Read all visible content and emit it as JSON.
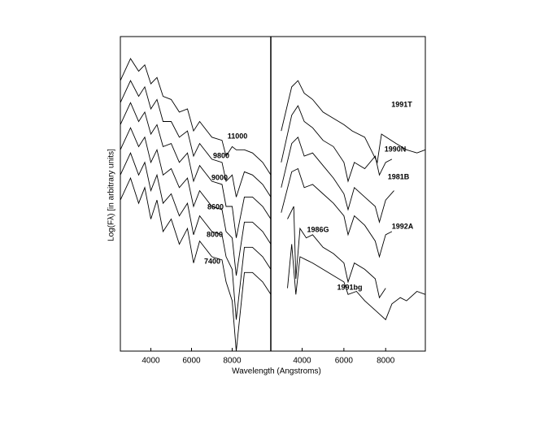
{
  "chart_data": [
    {
      "type": "line",
      "xlabel": "Wavelength (Angstroms)",
      "ylabel": "Log(Fλ) [in arbitrary units]",
      "xlim": [
        2500,
        9900
      ],
      "xticks": [
        4000,
        6000,
        8000
      ],
      "ylim": [
        0,
        10
      ],
      "series": [
        {
          "name": "11000",
          "color": "#000000",
          "x": [
            2500,
            3000,
            3400,
            3700,
            4000,
            4300,
            4600,
            5000,
            5400,
            5800,
            6100,
            6400,
            7000,
            7500,
            7700,
            8000,
            8200,
            8600,
            9000,
            9500,
            9900
          ],
          "values": [
            8.6,
            9.3,
            8.9,
            9.1,
            8.5,
            8.7,
            8.1,
            8.0,
            7.6,
            7.7,
            7.0,
            7.3,
            6.8,
            6.7,
            6.2,
            6.5,
            6.4,
            6.4,
            6.3,
            6.0,
            5.6
          ]
        },
        {
          "name": "9800",
          "color": "#000000",
          "x": [
            2500,
            3000,
            3400,
            3700,
            4000,
            4300,
            4600,
            5000,
            5400,
            5800,
            6100,
            6400,
            7000,
            7500,
            7700,
            8000,
            8200,
            8600,
            9000,
            9500,
            9900
          ],
          "values": [
            7.9,
            8.6,
            8.1,
            8.4,
            7.7,
            8.0,
            7.3,
            7.3,
            6.8,
            7.0,
            6.2,
            6.6,
            6.1,
            6.0,
            5.4,
            5.6,
            4.9,
            5.7,
            5.6,
            5.3,
            4.9
          ]
        },
        {
          "name": "9000",
          "color": "#000000",
          "x": [
            2500,
            3000,
            3400,
            3700,
            4000,
            4300,
            4600,
            5000,
            5400,
            5800,
            6100,
            6400,
            7000,
            7500,
            7700,
            8000,
            8200,
            8600,
            9000,
            9500,
            9900
          ],
          "values": [
            7.2,
            7.9,
            7.3,
            7.6,
            6.9,
            7.2,
            6.5,
            6.6,
            6.0,
            6.3,
            5.4,
            5.9,
            5.4,
            5.3,
            4.6,
            4.6,
            3.6,
            4.9,
            4.9,
            4.6,
            4.2
          ]
        },
        {
          "name": "8600",
          "color": "#000000",
          "x": [
            2500,
            3000,
            3400,
            3700,
            4000,
            4300,
            4600,
            5000,
            5400,
            5800,
            6100,
            6400,
            7000,
            7500,
            7700,
            8000,
            8200,
            8600,
            9000,
            9500,
            9900
          ],
          "values": [
            6.4,
            7.1,
            6.5,
            6.8,
            6.0,
            6.4,
            5.6,
            5.8,
            5.2,
            5.5,
            4.6,
            5.1,
            4.6,
            4.5,
            3.8,
            3.6,
            2.4,
            4.1,
            4.1,
            3.8,
            3.4
          ]
        },
        {
          "name": "8000",
          "color": "#000000",
          "x": [
            2500,
            3000,
            3400,
            3700,
            4000,
            4300,
            4600,
            5000,
            5400,
            5800,
            6100,
            6400,
            7000,
            7500,
            7700,
            8000,
            8200,
            8600,
            9000,
            9500,
            9900
          ],
          "values": [
            5.6,
            6.3,
            5.6,
            6.0,
            5.1,
            5.6,
            4.7,
            5.0,
            4.3,
            4.7,
            3.7,
            4.3,
            3.8,
            3.7,
            3.0,
            2.6,
            1.0,
            3.3,
            3.3,
            3.0,
            2.6
          ]
        },
        {
          "name": "7400",
          "color": "#000000",
          "x": [
            2500,
            3000,
            3400,
            3700,
            4000,
            4300,
            4600,
            5000,
            5400,
            5800,
            6100,
            6400,
            7000,
            7500,
            7700,
            8000,
            8200,
            8600,
            9000,
            9500,
            9900
          ],
          "values": [
            4.8,
            5.5,
            4.7,
            5.2,
            4.2,
            4.8,
            3.8,
            4.2,
            3.4,
            3.9,
            2.8,
            3.5,
            3.0,
            2.9,
            2.2,
            1.6,
            0.0,
            2.5,
            2.5,
            2.2,
            1.8
          ]
        }
      ]
    },
    {
      "type": "line",
      "xlim": [
        2500,
        9900
      ],
      "xticks": [
        4000,
        6000,
        8000
      ],
      "ylim": [
        0,
        10
      ],
      "series": [
        {
          "name": "1991T",
          "color": "#000000",
          "x": [
            3000,
            3500,
            3800,
            4100,
            4500,
            5000,
            5500,
            6000,
            6400,
            7000,
            7600,
            7800,
            8500,
            9000,
            9500,
            9900
          ],
          "values": [
            7.0,
            8.4,
            8.6,
            8.2,
            8.0,
            7.6,
            7.4,
            7.2,
            7.0,
            6.8,
            6.0,
            6.9,
            6.6,
            6.4,
            6.3,
            6.4
          ]
        },
        {
          "name": "1990N",
          "color": "#000000",
          "x": [
            3000,
            3500,
            3800,
            4100,
            4500,
            5000,
            5500,
            6000,
            6200,
            6500,
            7000,
            7500,
            7700,
            8000,
            8300
          ],
          "values": [
            6.0,
            7.5,
            7.8,
            7.3,
            7.1,
            6.7,
            6.5,
            6.0,
            5.4,
            6.0,
            5.8,
            6.2,
            5.6,
            6.0,
            6.1
          ]
        },
        {
          "name": "1981B",
          "color": "#000000",
          "x": [
            3000,
            3500,
            3800,
            4100,
            4500,
            5000,
            5500,
            6000,
            6200,
            6500,
            7000,
            7500,
            7700,
            8000,
            8400
          ],
          "values": [
            5.2,
            6.6,
            6.8,
            6.2,
            6.3,
            5.9,
            5.5,
            5.0,
            4.5,
            5.2,
            4.9,
            4.6,
            4.1,
            4.8,
            5.1
          ]
        },
        {
          "name": "1992A",
          "color": "#000000",
          "x": [
            3000,
            3500,
            3800,
            4100,
            4500,
            5000,
            5500,
            6000,
            6200,
            6500,
            7000,
            7500,
            7700,
            8000,
            8300
          ],
          "values": [
            4.4,
            5.7,
            5.8,
            5.2,
            5.3,
            5.0,
            4.7,
            4.3,
            3.7,
            4.3,
            4.0,
            3.5,
            3.0,
            3.7,
            3.8
          ]
        },
        {
          "name": "1986G",
          "color": "#000000",
          "x": [
            3300,
            3600,
            3700,
            3900,
            4200,
            4500,
            5000,
            5500,
            6000,
            6200,
            6500,
            7000,
            7500,
            7700,
            8000
          ],
          "values": [
            4.2,
            4.6,
            2.3,
            3.9,
            3.6,
            3.7,
            3.3,
            3.1,
            2.8,
            2.2,
            2.8,
            2.6,
            2.3,
            1.7,
            2.0
          ]
        },
        {
          "name": "1991bg",
          "color": "#000000",
          "x": [
            3300,
            3500,
            3700,
            3900,
            4200,
            4500,
            5000,
            5500,
            6000,
            6200,
            6600,
            7000,
            7500,
            8000,
            8300,
            8700,
            9000,
            9500,
            9900
          ],
          "values": [
            2.0,
            3.4,
            1.8,
            3.0,
            2.9,
            2.8,
            2.6,
            2.4,
            2.2,
            1.8,
            1.9,
            1.6,
            1.3,
            1.0,
            1.5,
            1.7,
            1.6,
            1.9,
            1.8
          ]
        }
      ]
    }
  ]
}
